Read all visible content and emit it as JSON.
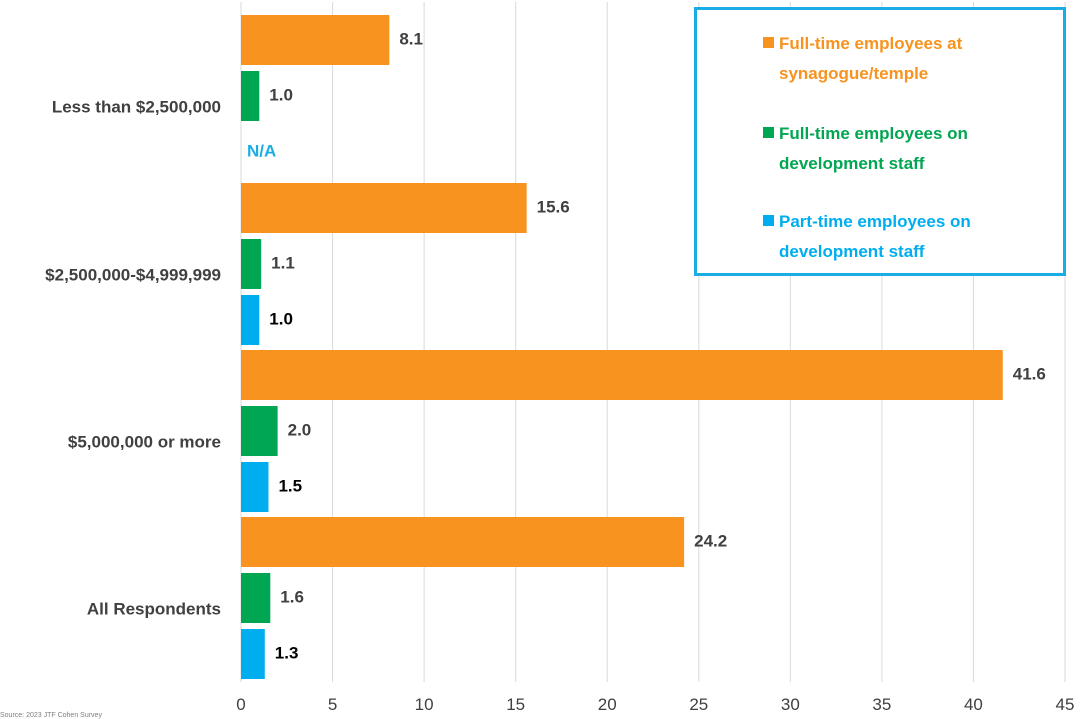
{
  "chart_data": {
    "type": "bar",
    "orientation": "horizontal",
    "categories": [
      "Less than $2,500,000",
      "$2,500,000-$4,999,999",
      "$5,000,000 or more",
      "All Respondents"
    ],
    "series": [
      {
        "name": "Full-time employees at synagogue/temple",
        "values": [
          8.1,
          15.6,
          41.6,
          24.2
        ],
        "labels": [
          "8.1",
          "15.6",
          "41.6",
          "24.2"
        ],
        "color": "#F7931E"
      },
      {
        "name": "Full-time employees on development staff",
        "values": [
          1.0,
          1.1,
          2.0,
          1.6
        ],
        "labels": [
          "1.0",
          "1.1",
          "2.0",
          "1.6"
        ],
        "color": "#00A651"
      },
      {
        "name": "Part-time employees on development staff",
        "values": [
          null,
          1.0,
          1.5,
          1.3
        ],
        "labels": [
          "N/A",
          "1.0",
          "1.5",
          "1.3"
        ],
        "color": "#00AEEF"
      }
    ],
    "xlim": [
      0,
      45
    ],
    "xticks": [
      0,
      5,
      10,
      15,
      20,
      25,
      30,
      35,
      40,
      45
    ],
    "grid": "vertical",
    "legend": {
      "position": "top-right",
      "border_color": "#1AADE3",
      "entries": [
        [
          "Full-time employees at",
          "synagogue/temple"
        ],
        [
          "Full-time employees on",
          "development staff"
        ],
        [
          "Part-time employees on",
          "development staff"
        ]
      ]
    },
    "label_colors": {
      "default": "#404040",
      "part_time": "#000000",
      "na": "#1AADE3"
    },
    "title": "",
    "xlabel": "",
    "ylabel": ""
  },
  "footnote": "Source: 2023 JTF Cohen Survey"
}
